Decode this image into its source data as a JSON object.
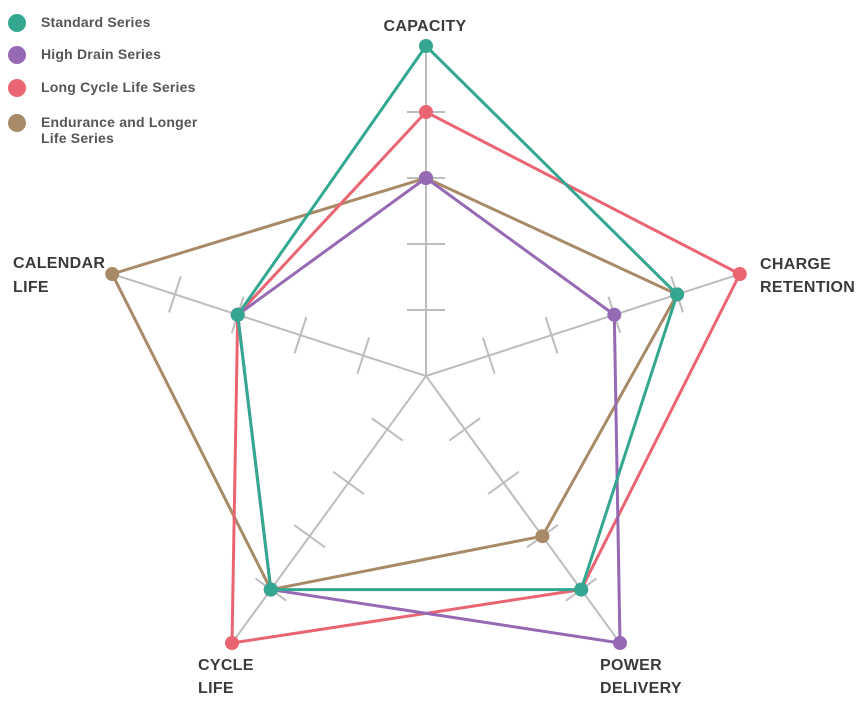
{
  "legend": {
    "position": "top-left",
    "items": [
      {
        "label": "Standard Series",
        "color": "#34a791"
      },
      {
        "label": "High Drain Series",
        "color": "#9669b4"
      },
      {
        "label": "Long Cycle Life Series",
        "color": "#ea6572"
      },
      {
        "label": "Endurance and Longer\nLife Series",
        "color": "#a98a68"
      }
    ]
  },
  "chart_data": {
    "type": "radar",
    "title": "",
    "axes": [
      {
        "id": "capacity",
        "label": "CAPACITY",
        "label_lines": [
          "CAPACITY"
        ]
      },
      {
        "id": "charge-retention",
        "label": "CHARGE RETENTION",
        "label_lines": [
          "CHARGE",
          "RETENTION"
        ]
      },
      {
        "id": "power-delivery",
        "label": "POWER DELIVERY",
        "label_lines": [
          "POWER",
          "DELIVERY"
        ]
      },
      {
        "id": "cycle-life",
        "label": "CYCLE LIFE",
        "label_lines": [
          "CYCLE",
          "LIFE"
        ]
      },
      {
        "id": "calendar-life",
        "label": "CALENDAR LIFE",
        "label_lines": [
          "CALENDAR",
          "LIFE"
        ]
      }
    ],
    "scale": {
      "min": 0,
      "max": 5,
      "tick_interval": 1,
      "tick_values": [
        1,
        2,
        3,
        4
      ]
    },
    "series": [
      {
        "name": "Standard Series",
        "color": "#34a791",
        "values": [
          5,
          4,
          4,
          4,
          3
        ]
      },
      {
        "name": "High Drain Series",
        "color": "#9669b4",
        "values": [
          3,
          3,
          5,
          4,
          3
        ]
      },
      {
        "name": "Long Cycle Life Series",
        "color": "#ea6572",
        "values": [
          4,
          5,
          4,
          5,
          3
        ]
      },
      {
        "name": "Endurance and Longer Life Series",
        "color": "#a98a68",
        "values": [
          3,
          4,
          3,
          4,
          5
        ]
      }
    ],
    "grid": "radial-spokes-with-ticks",
    "axis_color": "#bdbdbd",
    "label_color": "#3b3b3e",
    "legend_position": "top-left"
  }
}
